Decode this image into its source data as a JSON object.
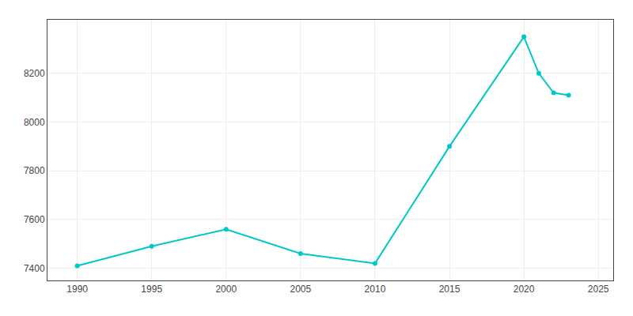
{
  "chart_data": {
    "type": "line",
    "x": [
      1990,
      1995,
      2000,
      2005,
      2010,
      2015,
      2020,
      2021,
      2022,
      2023
    ],
    "values": [
      7410,
      7490,
      7560,
      7460,
      7420,
      7900,
      8350,
      8200,
      8120,
      8110
    ],
    "color": "#00C8C8",
    "marker": "circle",
    "line_style": "solid",
    "xlim": [
      1988,
      2026
    ],
    "ylim": [
      7350,
      8420
    ],
    "xticks": [
      1990,
      1995,
      2000,
      2005,
      2010,
      2015,
      2020,
      2025
    ],
    "yticks": [
      7400,
      7600,
      7800,
      8000,
      8200
    ],
    "grid": true
  }
}
